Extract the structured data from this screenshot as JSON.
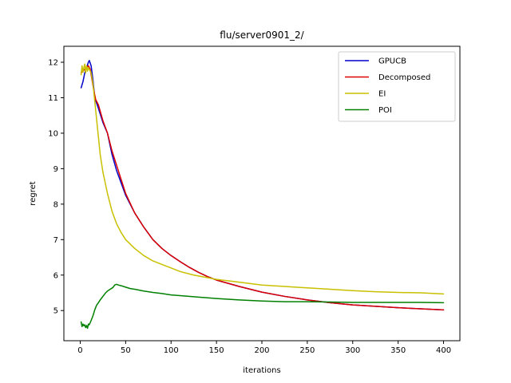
{
  "chart_data": {
    "type": "line",
    "title": "flu/server0901_2/",
    "xlabel": "iterations",
    "ylabel": "regret",
    "xlim": [
      -18,
      418
    ],
    "ylim": [
      4.15,
      12.45
    ],
    "xticks": [
      0,
      50,
      100,
      150,
      200,
      250,
      300,
      350,
      400
    ],
    "yticks": [
      5,
      6,
      7,
      8,
      9,
      10,
      11,
      12
    ],
    "grid": false,
    "legend_position": "top-right",
    "series": [
      {
        "name": "GPUCB",
        "color": "#0000cc",
        "x": [
          1,
          3,
          5,
          7,
          9,
          10,
          12,
          14,
          16,
          18,
          20,
          25,
          30,
          35,
          40,
          45,
          50,
          60,
          70,
          80,
          90,
          100,
          110,
          120,
          130,
          140,
          150,
          175,
          200,
          225,
          250,
          275,
          300,
          350,
          400
        ],
        "y": [
          11.28,
          11.45,
          11.7,
          11.85,
          12.0,
          12.05,
          11.9,
          11.5,
          11.0,
          10.85,
          10.7,
          10.3,
          10.0,
          9.4,
          8.95,
          8.6,
          8.25,
          7.75,
          7.35,
          7.0,
          6.75,
          6.55,
          6.38,
          6.22,
          6.08,
          5.96,
          5.86,
          5.68,
          5.52,
          5.4,
          5.3,
          5.22,
          5.16,
          5.08,
          5.02
        ]
      },
      {
        "name": "Decomposed",
        "color": "#dd0000",
        "x": [
          1,
          3,
          5,
          7,
          9,
          11,
          13,
          15,
          17,
          20,
          25,
          30,
          35,
          40,
          45,
          50,
          60,
          70,
          80,
          90,
          100,
          110,
          120,
          130,
          140,
          150,
          175,
          200,
          225,
          250,
          275,
          300,
          350,
          400
        ],
        "y": [
          11.7,
          11.75,
          11.8,
          11.85,
          11.9,
          11.8,
          11.5,
          11.2,
          10.95,
          10.8,
          10.35,
          10.0,
          9.5,
          9.1,
          8.7,
          8.3,
          7.75,
          7.35,
          7.0,
          6.75,
          6.55,
          6.38,
          6.22,
          6.08,
          5.96,
          5.86,
          5.68,
          5.52,
          5.4,
          5.3,
          5.22,
          5.16,
          5.08,
          5.02
        ]
      },
      {
        "name": "EI",
        "color": "#c8c000",
        "x": [
          1,
          2,
          3,
          4,
          5,
          6,
          7,
          8,
          9,
          10,
          12,
          14,
          16,
          18,
          20,
          22,
          25,
          30,
          35,
          40,
          45,
          50,
          60,
          70,
          80,
          90,
          100,
          110,
          125,
          150,
          175,
          200,
          225,
          250,
          275,
          300,
          325,
          350,
          375,
          400
        ],
        "y": [
          11.65,
          11.9,
          11.72,
          11.85,
          11.95,
          11.7,
          11.9,
          11.75,
          11.85,
          11.8,
          11.7,
          11.4,
          10.9,
          10.4,
          9.9,
          9.4,
          8.9,
          8.3,
          7.8,
          7.45,
          7.2,
          7.0,
          6.75,
          6.55,
          6.4,
          6.3,
          6.2,
          6.1,
          6.0,
          5.88,
          5.8,
          5.72,
          5.68,
          5.64,
          5.6,
          5.56,
          5.53,
          5.51,
          5.5,
          5.47
        ]
      },
      {
        "name": "POI",
        "color": "#008000",
        "x": [
          1,
          2,
          3,
          4,
          5,
          6,
          7,
          8,
          9,
          10,
          12,
          14,
          16,
          18,
          20,
          22,
          25,
          28,
          30,
          33,
          36,
          38,
          40,
          42,
          45,
          50,
          55,
          60,
          70,
          80,
          90,
          100,
          125,
          150,
          175,
          200,
          225,
          250,
          275,
          300,
          325,
          350,
          375,
          400
        ],
        "y": [
          4.68,
          4.55,
          4.62,
          4.57,
          4.6,
          4.52,
          4.58,
          4.5,
          4.62,
          4.6,
          4.72,
          4.85,
          5.02,
          5.15,
          5.22,
          5.3,
          5.4,
          5.5,
          5.55,
          5.6,
          5.65,
          5.72,
          5.74,
          5.72,
          5.7,
          5.66,
          5.62,
          5.6,
          5.55,
          5.51,
          5.48,
          5.44,
          5.39,
          5.34,
          5.3,
          5.27,
          5.25,
          5.25,
          5.24,
          5.23,
          5.23,
          5.23,
          5.23,
          5.22
        ]
      }
    ]
  }
}
